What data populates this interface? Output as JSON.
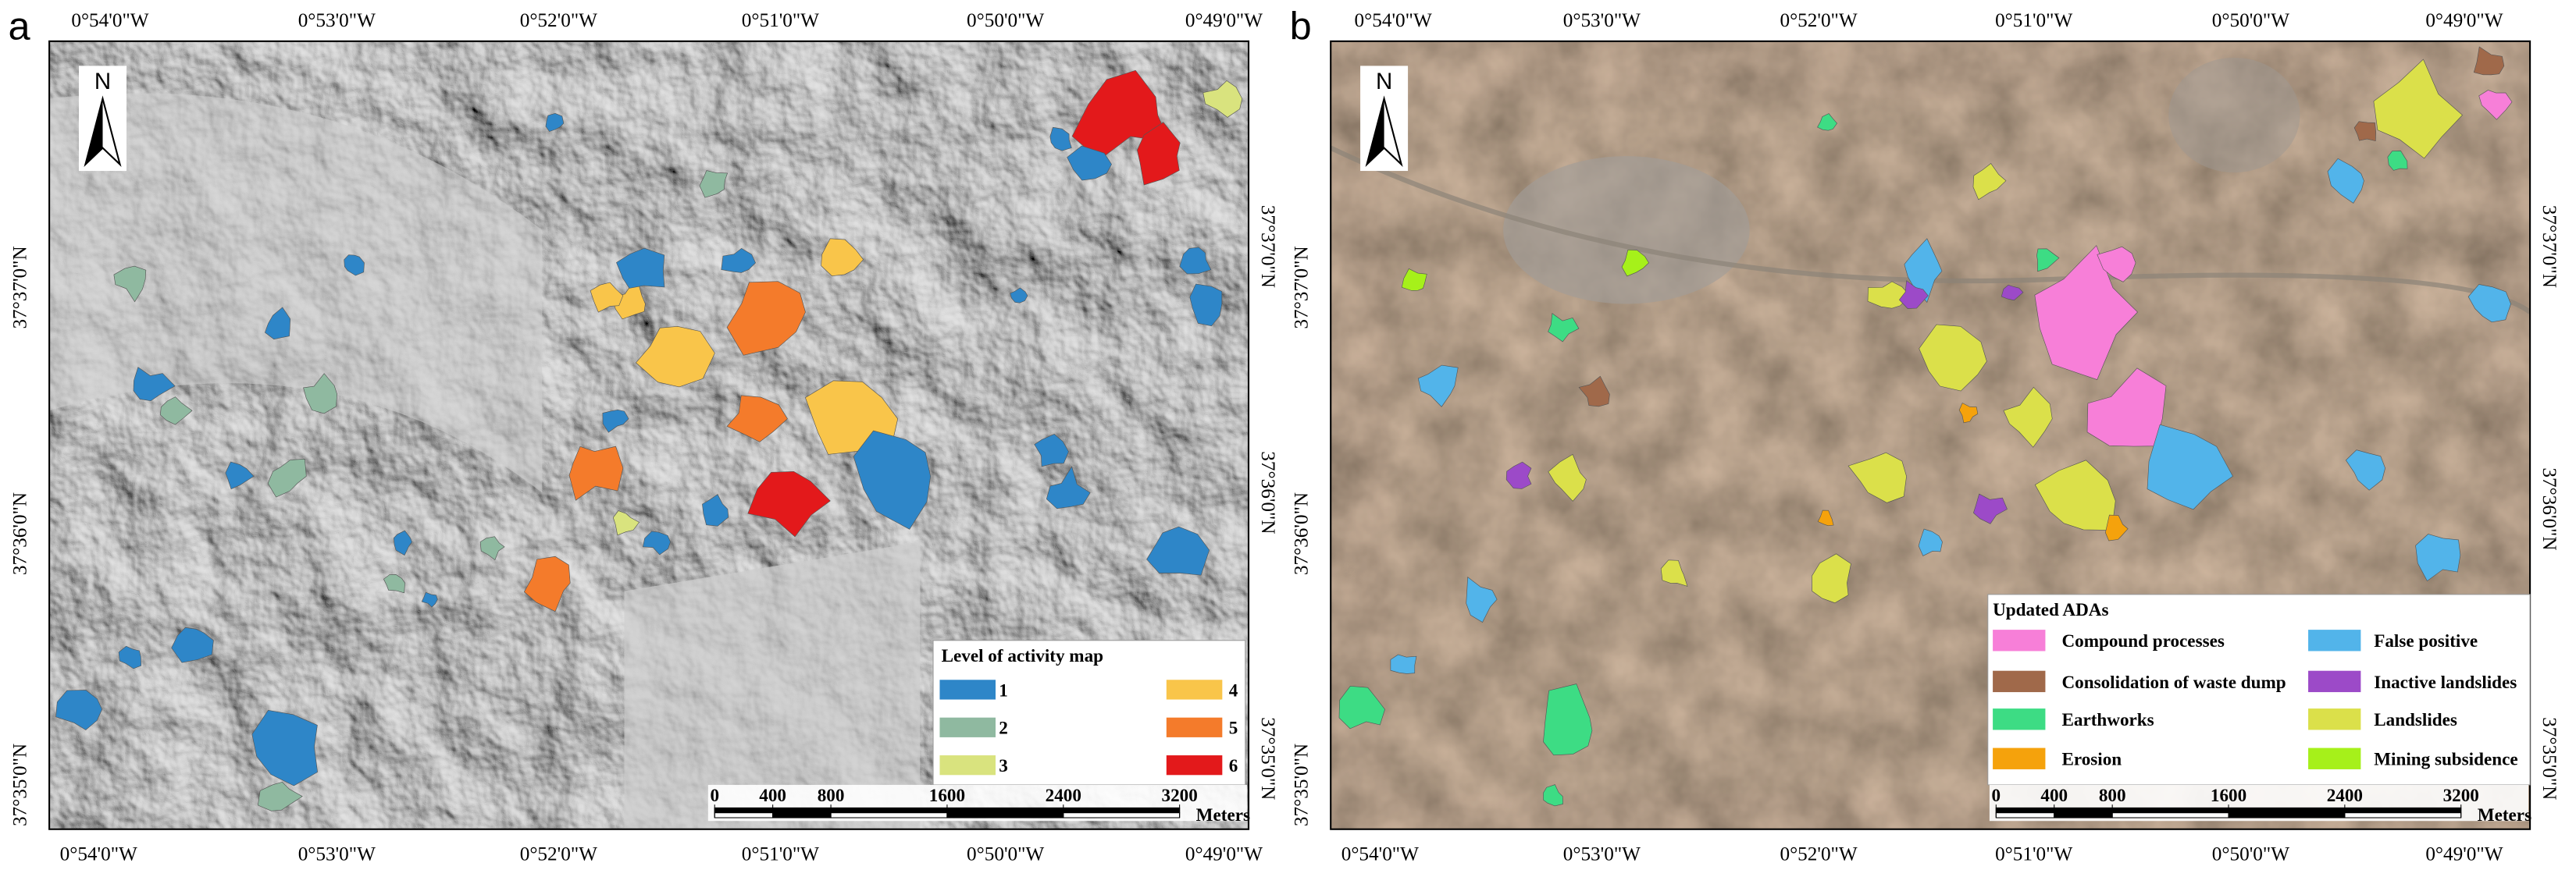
{
  "panels": [
    {
      "label": "a",
      "top_axis": [
        "0°54'0\"W",
        "0°53'0\"W",
        "0°52'0\"W",
        "0°51'0\"W",
        "0°50'0\"W",
        "0°49'0\"W"
      ],
      "bottom_axis": [
        "0°54'0\"W",
        "0°53'0\"W",
        "0°52'0\"W",
        "0°51'0\"W",
        "0°50'0\"W",
        "0°49'0\"W"
      ],
      "left_axis": [
        "37°37'0\"N",
        "37°36'0\"N",
        "37°35'0\"N"
      ],
      "right_axis": [
        "37°37'0\"N",
        "37°36'0\"N",
        "37°35'0\"N"
      ],
      "north": "N",
      "legend": {
        "title": "Level of activity map",
        "items": [
          {
            "label": "1",
            "color": "#2e86c8"
          },
          {
            "label": "2",
            "color": "#8fb9a0"
          },
          {
            "label": "3",
            "color": "#d9e37e"
          },
          {
            "label": "4",
            "color": "#f9c54a"
          },
          {
            "label": "5",
            "color": "#f47b2b"
          },
          {
            "label": "6",
            "color": "#e3191b"
          }
        ]
      },
      "scale_bar": {
        "ticks": [
          0,
          400,
          800,
          1600,
          2400,
          3200
        ],
        "unit": "Meters"
      }
    },
    {
      "label": "b",
      "top_axis": [
        "0°54'0\"W",
        "0°53'0\"W",
        "0°52'0\"W",
        "0°51'0\"W",
        "0°50'0\"W",
        "0°49'0\"W"
      ],
      "bottom_axis": [
        "0°54'0\"W",
        "0°53'0\"W",
        "0°52'0\"W",
        "0°51'0\"W",
        "0°50'0\"W",
        "0°49'0\"W"
      ],
      "left_axis": [
        "37°37'0\"N",
        "37°36'0\"N",
        "37°35'0\"N"
      ],
      "right_axis": [
        "37°37'0\"N",
        "37°36'0\"N",
        "37°35'0\"N"
      ],
      "north": "N",
      "legend": {
        "title": "Updated ADAs",
        "items": [
          {
            "label": "Compound processes",
            "color": "#f77fd8"
          },
          {
            "label": "Consolidation of waste dump",
            "color": "#a0694a"
          },
          {
            "label": "Earthworks",
            "color": "#3ddc84"
          },
          {
            "label": "Erosion",
            "color": "#f5a20c"
          },
          {
            "label": "False positive",
            "color": "#52b4ea"
          },
          {
            "label": "Inactive landslides",
            "color": "#9c4ac8"
          },
          {
            "label": "Landslides",
            "color": "#dbe04a"
          },
          {
            "label": "Mining subsidence",
            "color": "#a6f01a"
          }
        ]
      },
      "scale_bar": {
        "ticks": [
          0,
          400,
          800,
          1600,
          2400,
          3200
        ],
        "unit": "Meters"
      }
    }
  ]
}
